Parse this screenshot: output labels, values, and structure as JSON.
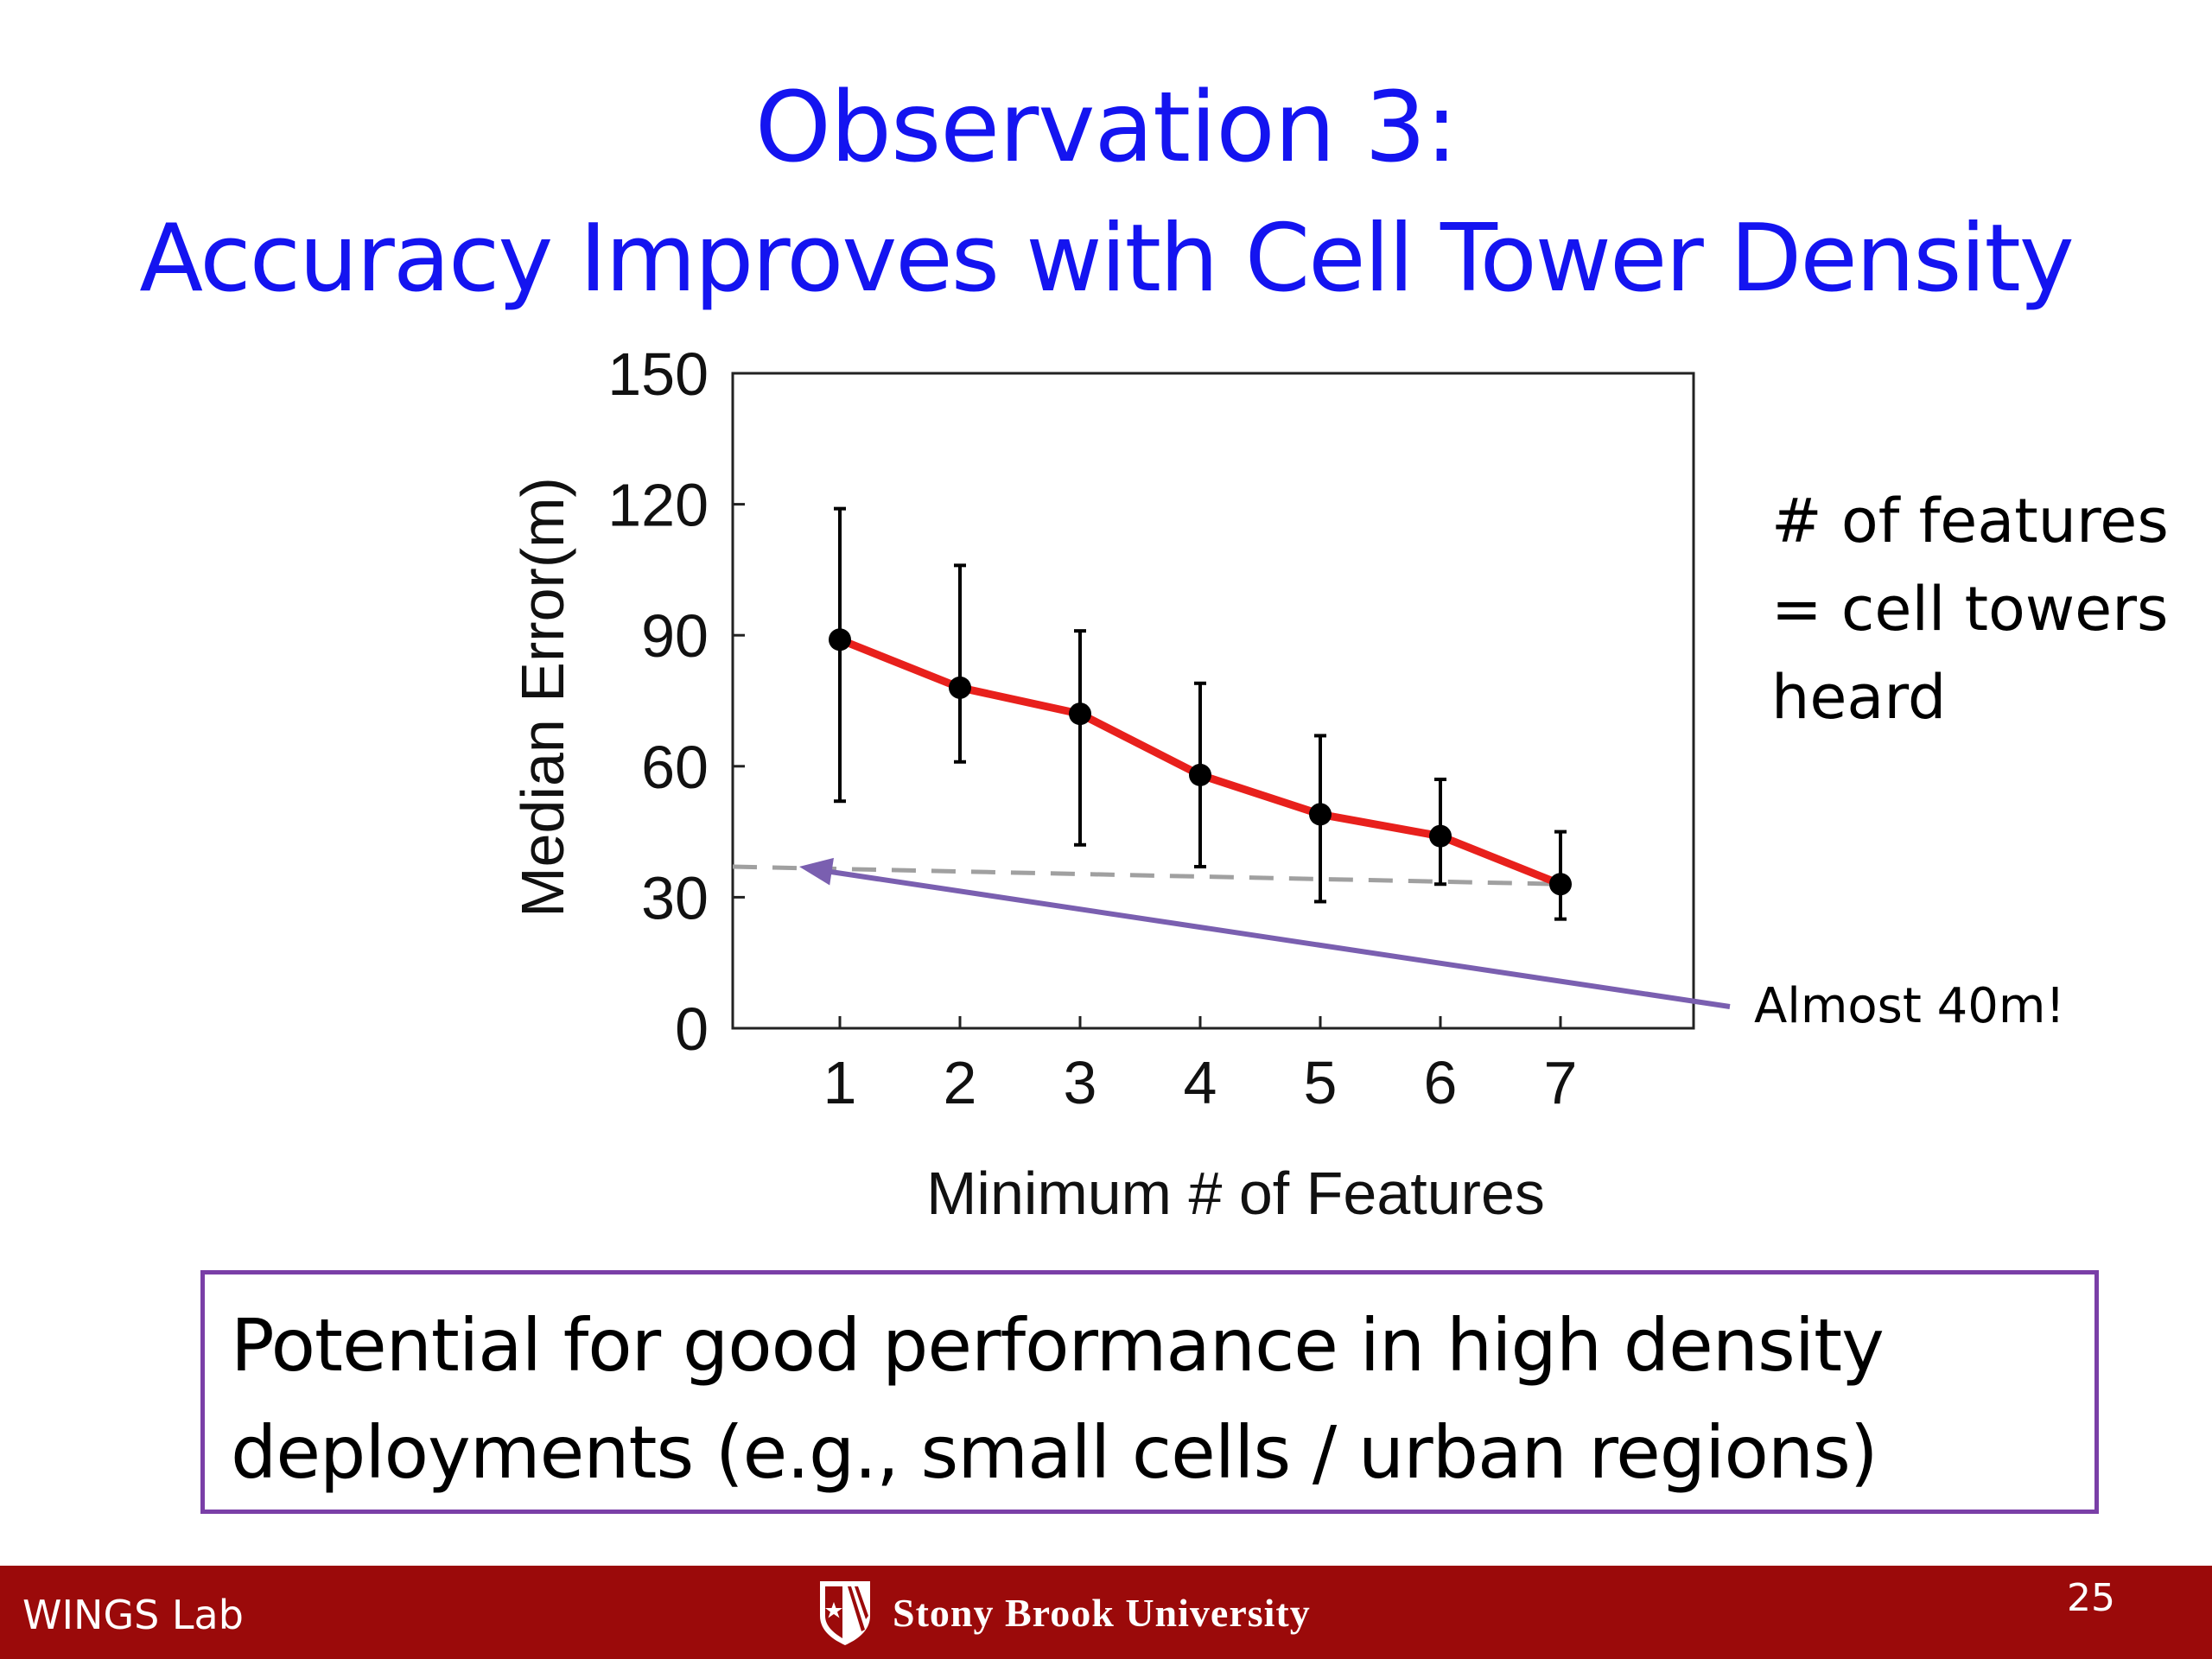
{
  "slide": {
    "title_line1": "Observation 3:",
    "title_line2": "Accuracy Improves with Cell Tower Density",
    "side_note": "# of features = cell towers heard",
    "annotation": "Almost 40m!",
    "callout": "Potential for good performance in high density deployments (e.g., small cells / urban regions)",
    "page_number": "25"
  },
  "footer": {
    "lab": "WINGS Lab",
    "university": "Stony Brook University"
  },
  "colors": {
    "title": "#1414f0",
    "series_line": "#e8201c",
    "callout_border": "#7a3fa7",
    "arrow": "#7a5fb0",
    "reference_line": "#a0a0a0",
    "footer_bg": "#9b0a0a"
  },
  "chart_data": {
    "type": "line",
    "xlabel": "Minimum # of Features",
    "ylabel": "Median Error(m)",
    "categories": [
      "1",
      "2",
      "3",
      "4",
      "5",
      "6",
      "7"
    ],
    "x": [
      1,
      2,
      3,
      4,
      5,
      6,
      7
    ],
    "series": [
      {
        "values": [
          89,
          78,
          72,
          58,
          49,
          44,
          33
        ],
        "error_low": [
          52,
          61,
          42,
          37,
          29,
          33,
          25
        ],
        "error_high": [
          119,
          106,
          91,
          79,
          67,
          57,
          45
        ]
      }
    ],
    "xlim": [
      0,
      8
    ],
    "ylim": [
      0,
      150
    ],
    "yticks": [
      0,
      30,
      60,
      90,
      120,
      150
    ],
    "reference_line": {
      "style": "dashed",
      "from": {
        "x": 0,
        "y": 37
      },
      "to": {
        "x": 7,
        "y": 33
      }
    },
    "grid": false
  }
}
